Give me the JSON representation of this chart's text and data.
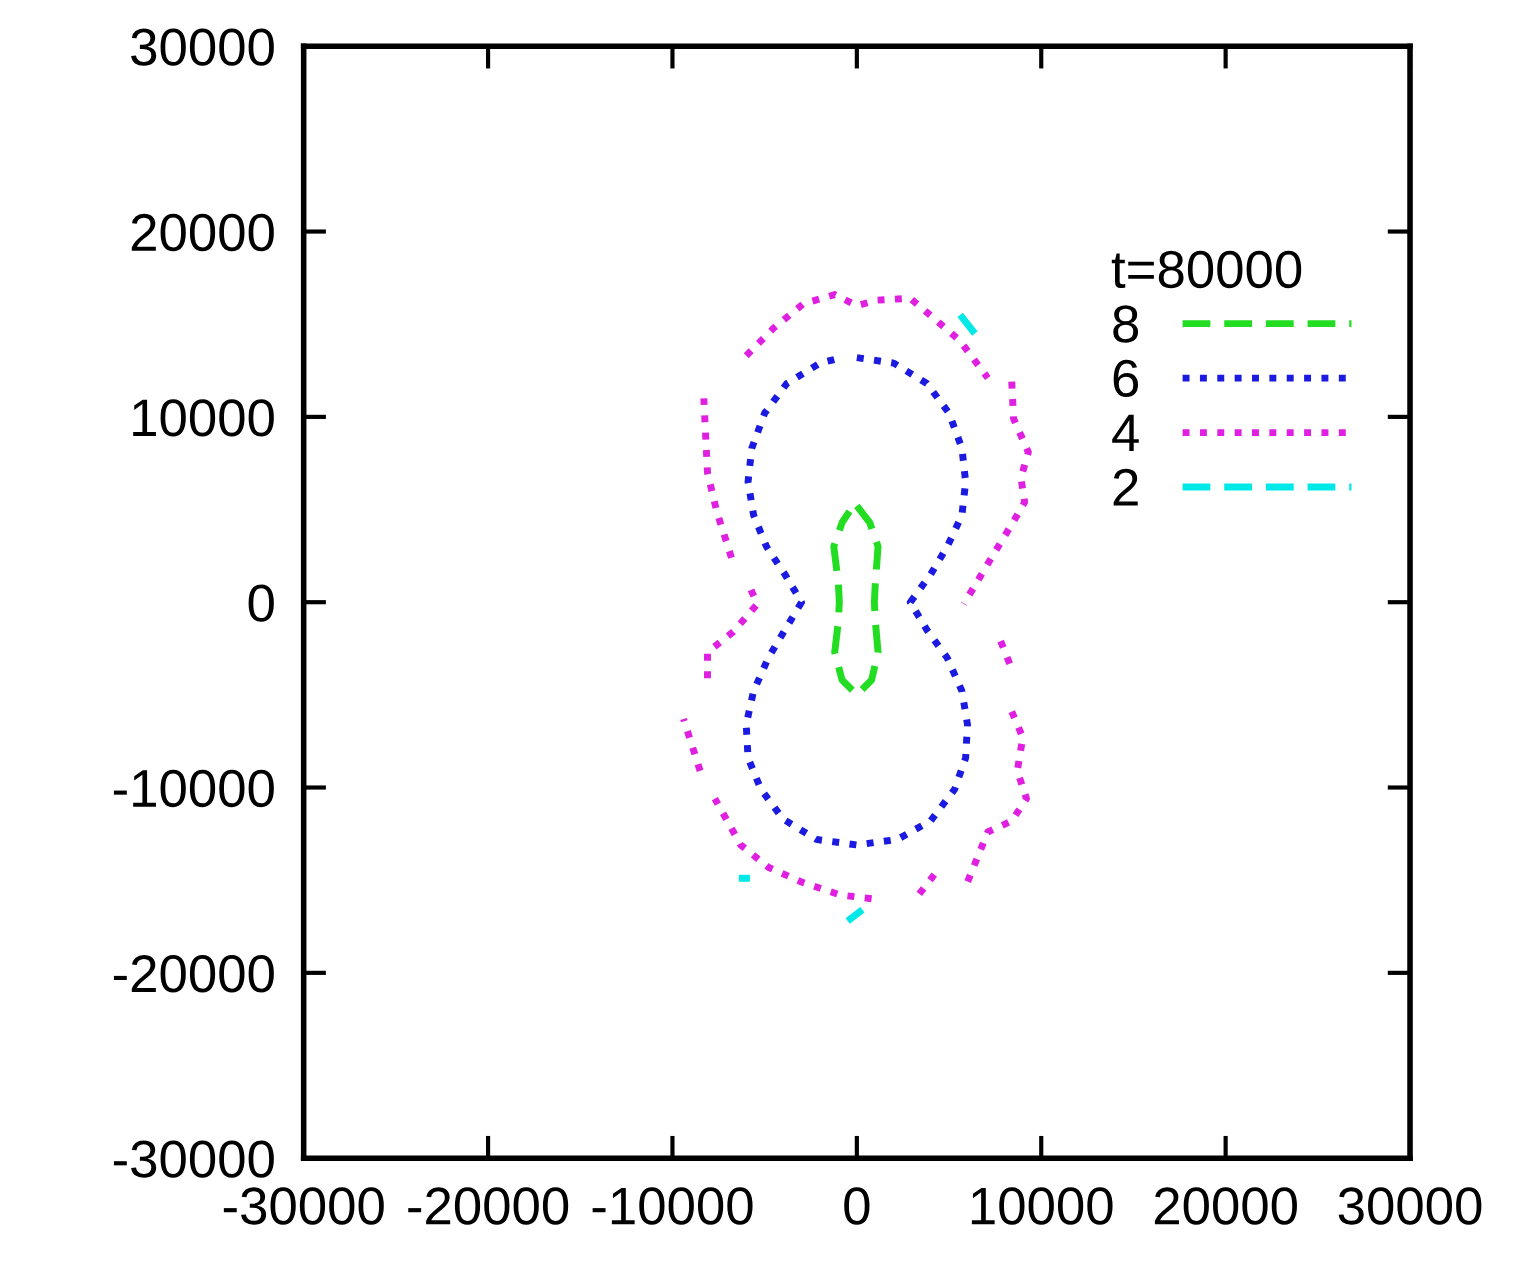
{
  "chart_data": {
    "type": "line",
    "legend_title": "t=80000",
    "legend": "top right",
    "grid": false,
    "xlim": [
      -30000,
      30000
    ],
    "xticks": [
      -30000,
      -20000,
      -10000,
      0,
      10000,
      20000,
      30000
    ],
    "ylim": [
      -30000,
      30000
    ],
    "yticks": [
      -30000,
      -20000,
      -10000,
      0,
      10000,
      20000,
      30000
    ],
    "series": [
      {
        "name": "8",
        "color": "#22dd22",
        "line_style": "dashed",
        "x": [
          0,
          700,
          1150,
          1000,
          950,
          1000,
          1150,
          800,
          0,
          -800,
          -1200,
          -1000,
          -950,
          -1000,
          -1250,
          -800,
          -400
        ],
        "values": [
          5200,
          4300,
          3000,
          1000,
          0,
          -1000,
          -2700,
          -4200,
          -5000,
          -4200,
          -2700,
          -1000,
          0,
          1000,
          3000,
          4300,
          4900
        ]
      },
      {
        "name": "6",
        "color": "#1a1ae0",
        "line_style": "dotted",
        "x": [
          0,
          2000,
          3800,
          5000,
          5700,
          5900,
          5700,
          4900,
          4000,
          2900,
          3800,
          4900,
          5700,
          6000,
          5900,
          5300,
          4000,
          2200,
          0,
          -2200,
          -4000,
          -5200,
          -5900,
          -6000,
          -5600,
          -4800,
          -3900,
          -3000,
          -3900,
          -4900,
          -5600,
          -5900,
          -5700,
          -5000,
          -3800,
          -2000,
          -800
        ],
        "values": [
          13200,
          12900,
          11800,
          10200,
          8300,
          6500,
          4700,
          3000,
          1500,
          0,
          -1500,
          -3000,
          -4800,
          -6600,
          -8400,
          -10100,
          -11800,
          -12800,
          -13100,
          -12800,
          -11700,
          -10100,
          -8400,
          -6600,
          -4800,
          -3000,
          -1500,
          0,
          1500,
          3000,
          4700,
          6500,
          8300,
          10200,
          11800,
          12900,
          13200
        ]
      },
      {
        "name": "4",
        "color": "#e020e0",
        "line_style": "dotted",
        "x": [
          -6000,
          -4500,
          -2900,
          -1200,
          0,
          1100,
          2900,
          4200,
          5600,
          7100,
          null,
          8400,
          8500,
          9300,
          8900,
          9100,
          8400,
          7300,
          6400,
          5800,
          null,
          7800,
          8400,
          null,
          8400,
          9000,
          8700,
          9200,
          8400,
          7100,
          6000,
          null,
          4200,
          3100,
          null,
          800,
          -900,
          -3000,
          -4800,
          -6300,
          -7700,
          null,
          -8500,
          -9400,
          null,
          -8100,
          -8100,
          -6700,
          -5400,
          -5800,
          null,
          -6800,
          -7600,
          -8100,
          -8300
        ],
        "values": [
          13300,
          14800,
          16100,
          16600,
          16000,
          16300,
          16400,
          15300,
          14100,
          12100,
          null,
          11900,
          9900,
          8100,
          6700,
          5400,
          4200,
          2400,
          900,
          -100,
          null,
          -2100,
          -3600,
          null,
          -5900,
          -7300,
          -9100,
          -10600,
          -11800,
          -12400,
          -15100,
          null,
          -14700,
          -16100,
          null,
          -16000,
          -15800,
          -15100,
          -14300,
          -13100,
          -10600,
          null,
          -9100,
          -6300,
          null,
          -4100,
          -2700,
          -1600,
          -100,
          800,
          null,
          2400,
          4900,
          7000,
          11000
        ]
      },
      {
        "name": "2",
        "color": "#00e8e8",
        "line_style": "dashed",
        "x": [
          5600,
          6400,
          null,
          -500,
          300,
          null,
          -6400,
          -5800
        ],
        "values": [
          15500,
          14500,
          null,
          -17200,
          -16600,
          null,
          -14900,
          -14900
        ]
      }
    ]
  }
}
